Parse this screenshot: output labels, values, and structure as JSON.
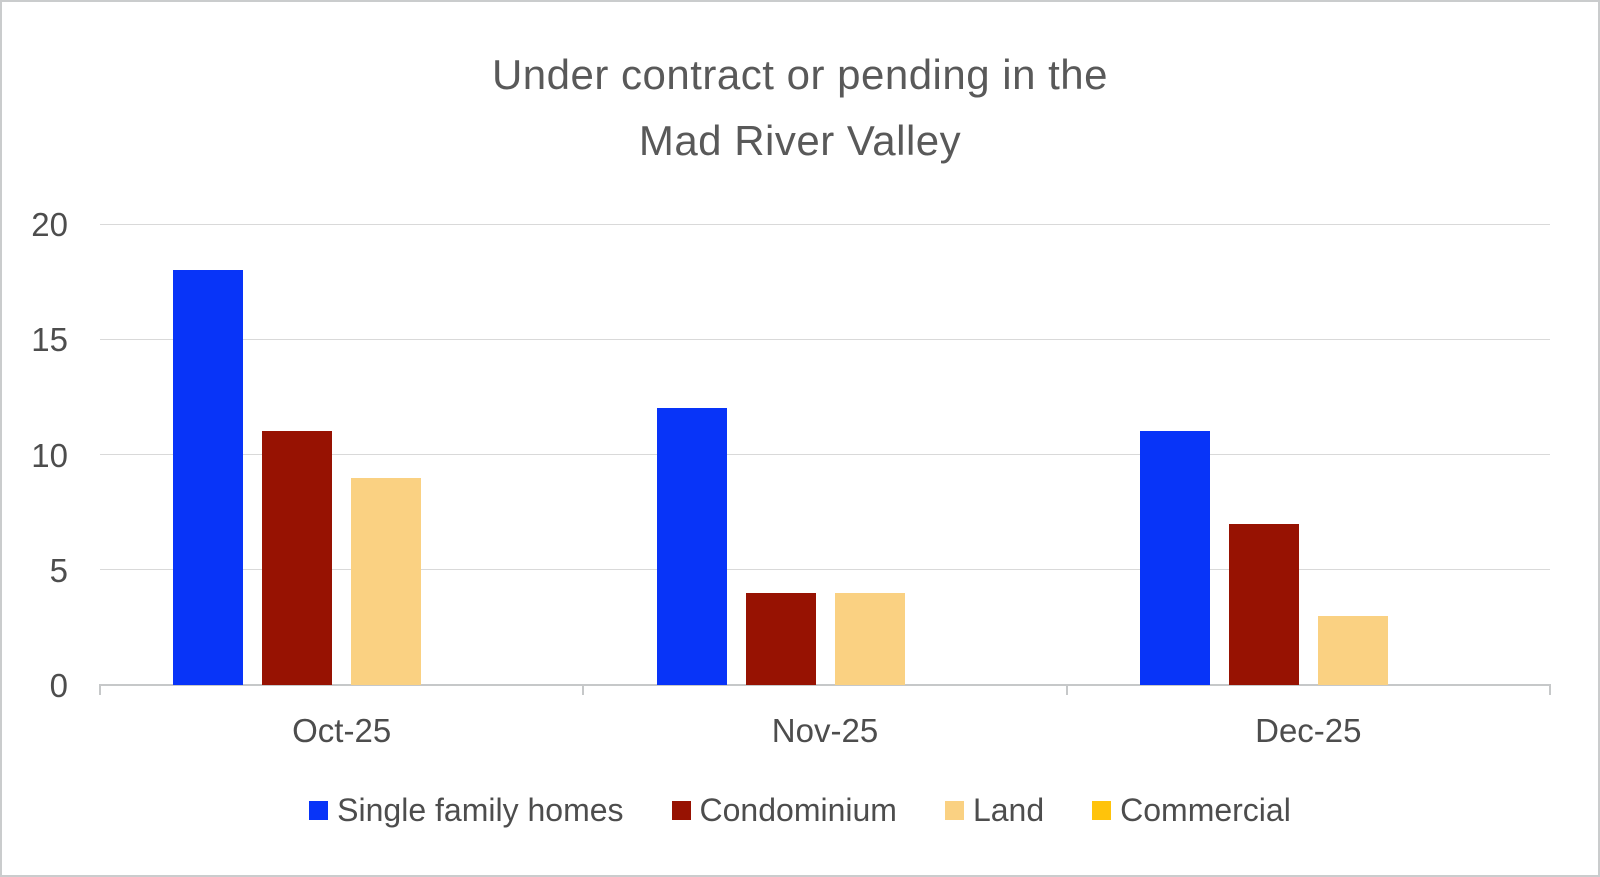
{
  "chart_data": {
    "type": "bar",
    "title": "Under contract or pending in the Mad River Valley",
    "title_lines": [
      "Under contract or pending in the",
      "Mad River Valley"
    ],
    "categories": [
      "Oct-25",
      "Nov-25",
      "Dec-25"
    ],
    "series": [
      {
        "name": "Single family homes",
        "color": "#0834f8",
        "values": [
          18,
          12,
          11
        ]
      },
      {
        "name": "Condominium",
        "color": "#971202",
        "values": [
          11,
          4,
          7
        ]
      },
      {
        "name": "Land",
        "color": "#fad182",
        "values": [
          9,
          4,
          3
        ]
      },
      {
        "name": "Commercial",
        "color": "#ffc30b",
        "values": [
          0,
          0,
          0
        ]
      }
    ],
    "xlabel": "",
    "ylabel": "",
    "ylim": [
      0,
      20
    ],
    "yticks": [
      0,
      5,
      10,
      15,
      20
    ],
    "grid": true,
    "legend_position": "bottom",
    "colors": {
      "title_text": "#595959",
      "axis_text": "#4d4d4d",
      "gridline": "#d9d9d9",
      "axis_line": "#c6c8c9",
      "frame_border": "#cacccd",
      "background": "#ffffff"
    }
  }
}
